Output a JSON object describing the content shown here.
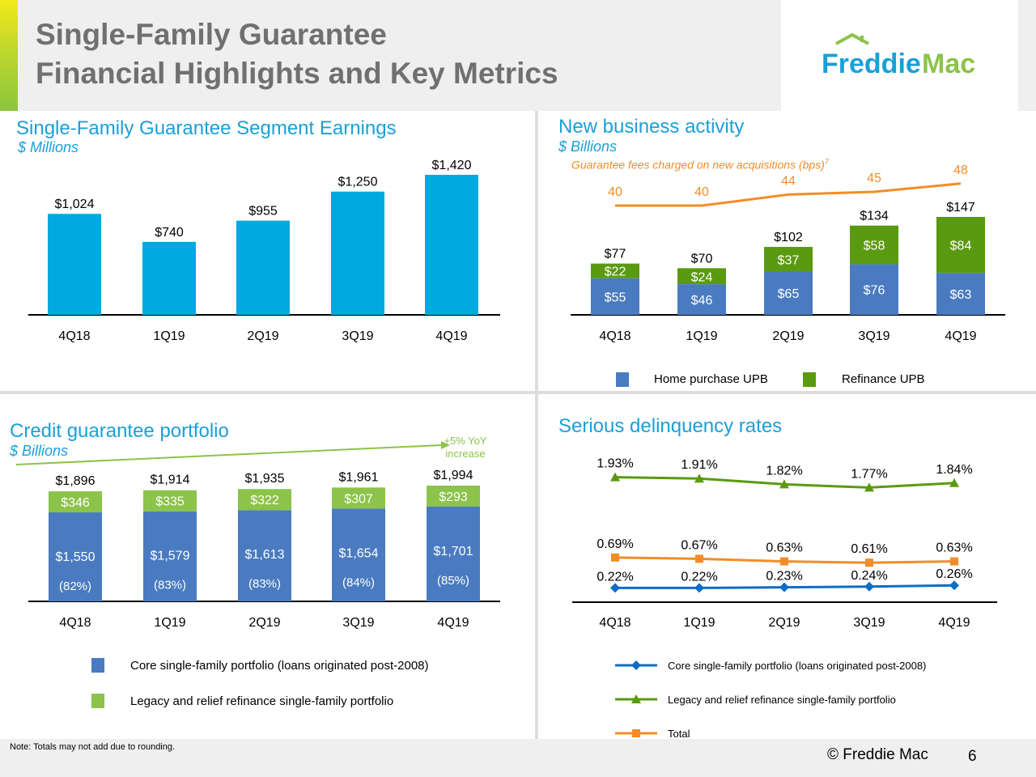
{
  "header": {
    "title_line1": "Single-Family Guarantee",
    "title_line2": "Financial Highlights and Key Metrics",
    "logo_text": "Freddie Mac"
  },
  "footer": {
    "note": "Note:  Totals may not add due to rounding.",
    "copyright": "©  Freddie Mac",
    "page": "6"
  },
  "colors": {
    "cyan": "#00a9e0",
    "blue": "#4a7bc0",
    "green": "#5a9a10",
    "lightgreen": "#8cc34a",
    "orange": "#f28c28",
    "darkblue": "#0f6dc4"
  },
  "chart_data": [
    {
      "type": "bar",
      "title": "Single-Family Guarantee Segment Earnings",
      "subtitle": "$ Millions",
      "categories": [
        "4Q18",
        "1Q19",
        "2Q19",
        "3Q19",
        "4Q19"
      ],
      "values": [
        1024,
        740,
        955,
        1250,
        1420
      ],
      "labels": [
        "$1,024",
        "$740",
        "$955",
        "$1,250",
        "$1,420"
      ]
    },
    {
      "type": "bar",
      "stacked": true,
      "title": "New business activity",
      "subtitle": "$ Billions",
      "categories": [
        "4Q18",
        "1Q19",
        "2Q19",
        "3Q19",
        "4Q19"
      ],
      "series": [
        {
          "name": "Home purchase UPB",
          "values": [
            55,
            46,
            65,
            76,
            63
          ]
        },
        {
          "name": "Refinance UPB",
          "values": [
            22,
            24,
            37,
            58,
            84
          ]
        }
      ],
      "totals": [
        77,
        70,
        102,
        134,
        147
      ],
      "line": {
        "name": "Guarantee fees charged on new acquisitions (bps)",
        "footnote": "7",
        "values": [
          40,
          40,
          44,
          45,
          48
        ]
      }
    },
    {
      "type": "bar",
      "stacked": true,
      "title": "Credit guarantee portfolio",
      "subtitle": "$ Billions",
      "categories": [
        "4Q18",
        "1Q19",
        "2Q19",
        "3Q19",
        "4Q19"
      ],
      "series": [
        {
          "name": "Core single-family portfolio (loans originated post-2008)",
          "values": [
            1550,
            1579,
            1613,
            1654,
            1701
          ],
          "shares": [
            "(82%)",
            "(83%)",
            "(83%)",
            "(84%)",
            "(85%)"
          ]
        },
        {
          "name": "Legacy and relief refinance single-family portfolio",
          "values": [
            346,
            335,
            322,
            307,
            293
          ]
        }
      ],
      "totals": [
        1896,
        1914,
        1935,
        1961,
        1994
      ],
      "annotation": [
        "+5% YoY",
        "increase"
      ]
    },
    {
      "type": "line",
      "title": "Serious delinquency rates",
      "categories": [
        "4Q18",
        "1Q19",
        "2Q19",
        "3Q19",
        "4Q19"
      ],
      "series": [
        {
          "name": "Core single-family portfolio (loans originated post-2008)",
          "values": [
            0.22,
            0.22,
            0.23,
            0.24,
            0.26
          ]
        },
        {
          "name": "Legacy and relief refinance single-family portfolio",
          "values": [
            1.93,
            1.91,
            1.82,
            1.77,
            1.84
          ]
        },
        {
          "name": "Total",
          "values": [
            0.69,
            0.67,
            0.63,
            0.61,
            0.63
          ]
        }
      ]
    }
  ]
}
